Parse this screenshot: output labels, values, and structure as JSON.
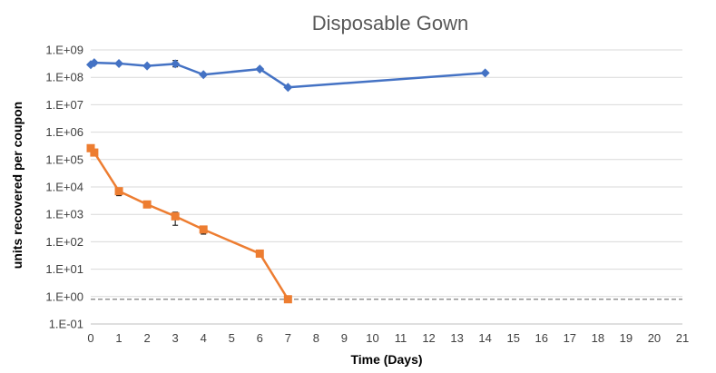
{
  "chart_data": {
    "type": "line",
    "title": "Disposable Gown",
    "xlabel": "Time (Days)",
    "ylabel": "units recovered per coupon",
    "xlim": [
      0,
      21
    ],
    "ylim": [
      0.1,
      1000000000
    ],
    "yscale": "log",
    "grid": "horizontal",
    "legend": "none",
    "x_ticks": [
      "0",
      "1",
      "2",
      "3",
      "4",
      "5",
      "6",
      "7",
      "8",
      "9",
      "10",
      "11",
      "12",
      "13",
      "14",
      "15",
      "16",
      "17",
      "18",
      "19",
      "20",
      "21"
    ],
    "y_ticks": [
      "1.E-01",
      "1.E+00",
      "1.E+01",
      "1.E+02",
      "1.E+03",
      "1.E+04",
      "1.E+05",
      "1.E+06",
      "1.E+07",
      "1.E+08",
      "1.E+09"
    ],
    "series": [
      {
        "color": "#4472C4",
        "marker": "diamond",
        "points": [
          {
            "x": 0,
            "y": 290000000
          },
          {
            "x": 0.125,
            "y": 340000000
          },
          {
            "x": 1,
            "y": 320000000
          },
          {
            "x": 2,
            "y": 260000000
          },
          {
            "x": 3,
            "y": 310000000,
            "err_low": 240000000,
            "err_high": 410000000
          },
          {
            "x": 4,
            "y": 125000000
          },
          {
            "x": 6,
            "y": 200000000
          },
          {
            "x": 7,
            "y": 43000000
          },
          {
            "x": 14,
            "y": 145000000
          }
        ]
      },
      {
        "color": "#ED7D31",
        "marker": "square",
        "points": [
          {
            "x": 0,
            "y": 260000
          },
          {
            "x": 0.125,
            "y": 180000
          },
          {
            "x": 1,
            "y": 7000,
            "err_low": 4800,
            "err_high": 8500
          },
          {
            "x": 2,
            "y": 2300
          },
          {
            "x": 3,
            "y": 850,
            "err_low": 400,
            "err_high": 1200
          },
          {
            "x": 4,
            "y": 280,
            "err_low": 190,
            "err_high": 350
          },
          {
            "x": 6,
            "y": 37
          },
          {
            "x": 7,
            "y": 0.8
          }
        ]
      }
    ],
    "reference_line": {
      "y": 0.8,
      "style": "dashed",
      "color": "#7F7F7F"
    }
  }
}
